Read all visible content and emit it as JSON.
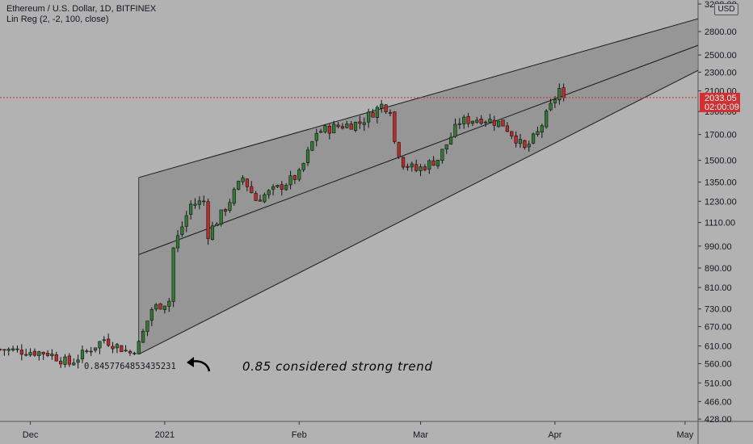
{
  "legend": {
    "title": "Ethereum / U.S. Dollar, 1D, BITFINEX",
    "indicator": "Lin Reg (2, -2, 100, close)"
  },
  "currency_button": "USD",
  "price_label": {
    "price": "2033.05",
    "countdown": "02:00:09",
    "color": "#d32f2f"
  },
  "correlation_text": "0.8457764853435231",
  "annotation_text": "0.85 considered strong trend",
  "colors": {
    "background": "#b2b2b2",
    "channel_fill": "#7f7f7f",
    "up_candle": "#2e7d32",
    "down_candle": "#c62828",
    "wick": "#111111",
    "price_line": "#d32f2f"
  },
  "chart_data": {
    "type": "candlestick",
    "y_scale": "log",
    "ylim": [
      415,
      3200
    ],
    "y_ticks": [
      3200,
      2800,
      2500,
      2300,
      2100,
      1900,
      1700,
      1500,
      1350,
      1230,
      1110,
      990,
      890,
      810,
      730,
      670,
      610,
      560,
      510,
      466,
      428
    ],
    "y_tick_labels": [
      "3200.00",
      "2800.00",
      "2500.00",
      "2300.00",
      "2100.00",
      "1900.00",
      "1700.00",
      "1500.00",
      "1350.00",
      "1230.00",
      "1110.00",
      "990.00",
      "890.00",
      "810.00",
      "730.00",
      "670.00",
      "610.00",
      "560.00",
      "510.00",
      "466.00",
      "428.00"
    ],
    "x_ticks": [
      {
        "label": "Dec",
        "date": "2020-12-01"
      },
      {
        "label": "2021",
        "date": "2021-01-01"
      },
      {
        "label": "Feb",
        "date": "2021-02-01"
      },
      {
        "label": "Mar",
        "date": "2021-03-01"
      },
      {
        "label": "Apr",
        "date": "2021-04-01"
      },
      {
        "label": "May",
        "date": "2021-05-01"
      }
    ],
    "x_range": [
      "2020-11-24",
      "2021-05-04"
    ],
    "regression_channel": {
      "start_date": "2020-12-26",
      "end_date": "2021-05-04",
      "start": {
        "upper": 1380,
        "mid": 950,
        "lower": 586
      },
      "end": {
        "upper": 2980,
        "mid": 2620,
        "lower": 2320
      }
    },
    "current_price": 2033.05,
    "close_path": [
      [
        "2020-11-24",
        600
      ],
      [
        "2020-12-05",
        590
      ],
      [
        "2020-12-10",
        560
      ],
      [
        "2020-12-18",
        630
      ],
      [
        "2020-12-24",
        590
      ],
      [
        "2020-12-26",
        615
      ],
      [
        "2020-12-29",
        730
      ],
      [
        "2021-01-02",
        760
      ],
      [
        "2021-01-03",
        980
      ],
      [
        "2021-01-07",
        1210
      ],
      [
        "2021-01-10",
        1230
      ],
      [
        "2021-01-11",
        1050
      ],
      [
        "2021-01-15",
        1190
      ],
      [
        "2021-01-19",
        1380
      ],
      [
        "2021-01-22",
        1240
      ],
      [
        "2021-01-27",
        1310
      ],
      [
        "2021-02-01",
        1400
      ],
      [
        "2021-02-05",
        1720
      ],
      [
        "2021-02-10",
        1770
      ],
      [
        "2021-02-15",
        1800
      ],
      [
        "2021-02-20",
        1960
      ],
      [
        "2021-02-22",
        1930
      ],
      [
        "2021-02-23",
        1640
      ],
      [
        "2021-02-25",
        1480
      ],
      [
        "2021-02-28",
        1430
      ],
      [
        "2021-03-05",
        1510
      ],
      [
        "2021-03-10",
        1810
      ],
      [
        "2021-03-15",
        1840
      ],
      [
        "2021-03-20",
        1790
      ],
      [
        "2021-03-23",
        1670
      ],
      [
        "2021-03-25",
        1580
      ],
      [
        "2021-03-28",
        1710
      ],
      [
        "2021-04-02",
        2120
      ],
      [
        "2021-04-03",
        2033
      ]
    ]
  }
}
